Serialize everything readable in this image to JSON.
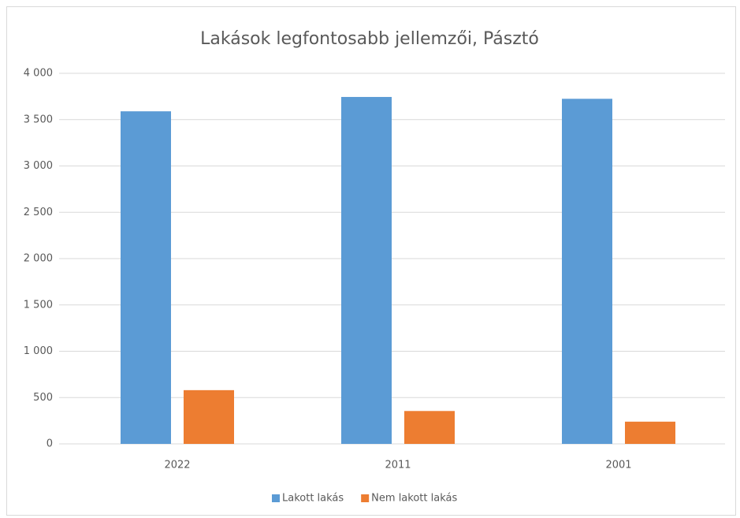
{
  "chart_data": {
    "type": "bar",
    "title": "Lakások legfontosabb jellemzői, Pásztó",
    "categories": [
      "2022",
      "2011",
      "2001"
    ],
    "series": [
      {
        "name": "Lakott lakás",
        "color": "#5b9bd5",
        "values": [
          3590,
          3745,
          3725
        ]
      },
      {
        "name": "Nem lakott lakás",
        "color": "#ed7d31",
        "values": [
          580,
          355,
          240
        ]
      }
    ],
    "ylim": [
      0,
      4000
    ],
    "yticks": [
      0,
      500,
      {
        "value": 1000,
        "label": "1 000"
      },
      {
        "value": 1500,
        "label": "1 500"
      },
      {
        "value": 2000,
        "label": "2 000"
      },
      {
        "value": 2500,
        "label": "2 500"
      },
      {
        "value": 3000,
        "label": "3 000"
      },
      {
        "value": 3500,
        "label": "3 500"
      },
      {
        "value": 4000,
        "label": "4 000"
      }
    ],
    "grid": true,
    "legend": "bottom"
  }
}
